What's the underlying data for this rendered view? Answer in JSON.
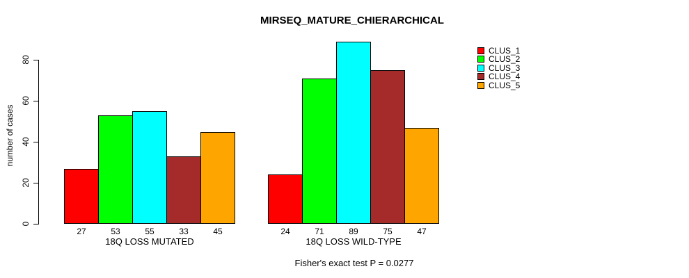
{
  "title": "MIRSEQ_MATURE_CHIERARCHICAL",
  "footer": "Fisher's exact test P = 0.0277",
  "chart_data": {
    "type": "bar",
    "title": "MIRSEQ_MATURE_CHIERARCHICAL",
    "ylabel": "number of cases",
    "xlabel": "",
    "ylim": [
      0,
      80
    ],
    "yticks": [
      0,
      20,
      40,
      60,
      80
    ],
    "grid": false,
    "legend_position": "right",
    "bar_border_color": "#000000",
    "show_value_labels": true,
    "categories": [
      "18Q LOSS MUTATED",
      "18Q LOSS WILD-TYPE"
    ],
    "series": [
      {
        "name": "CLUS_1",
        "color": "#FF0000",
        "values": [
          27,
          24
        ]
      },
      {
        "name": "CLUS_2",
        "color": "#00FF00",
        "values": [
          53,
          71
        ]
      },
      {
        "name": "CLUS_3",
        "color": "#00FFFF",
        "values": [
          55,
          89
        ]
      },
      {
        "name": "CLUS_4",
        "color": "#A52A2A",
        "values": [
          33,
          75
        ]
      },
      {
        "name": "CLUS_5",
        "color": "#FFA500",
        "values": [
          45,
          47
        ]
      }
    ],
    "annotation": "Fisher's exact test P = 0.0277"
  }
}
